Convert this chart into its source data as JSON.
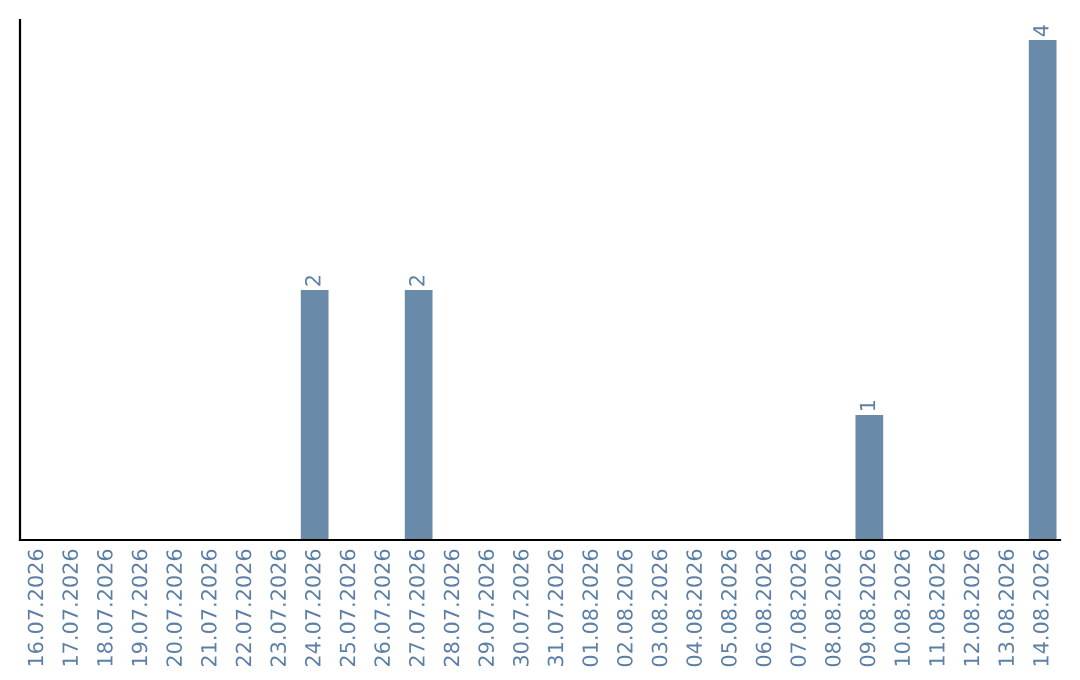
{
  "chart_data": {
    "type": "bar",
    "categories": [
      "16.07.2026",
      "17.07.2026",
      "18.07.2026",
      "19.07.2026",
      "20.07.2026",
      "21.07.2026",
      "22.07.2026",
      "23.07.2026",
      "24.07.2026",
      "25.07.2026",
      "26.07.2026",
      "27.07.2026",
      "28.07.2026",
      "29.07.2026",
      "30.07.2026",
      "31.07.2026",
      "01.08.2026",
      "02.08.2026",
      "03.08.2026",
      "04.08.2026",
      "05.08.2026",
      "06.08.2026",
      "07.08.2026",
      "08.08.2026",
      "09.08.2026",
      "10.08.2026",
      "11.08.2026",
      "12.08.2026",
      "13.08.2026",
      "14.08.2026"
    ],
    "values": [
      0,
      0,
      0,
      0,
      0,
      0,
      0,
      0,
      2,
      0,
      0,
      2,
      0,
      0,
      0,
      0,
      0,
      0,
      0,
      0,
      0,
      0,
      0,
      0,
      1,
      0,
      0,
      0,
      0,
      4
    ],
    "value_labels": [
      null,
      null,
      null,
      null,
      null,
      null,
      null,
      null,
      "2",
      null,
      null,
      "2",
      null,
      null,
      null,
      null,
      null,
      null,
      null,
      null,
      null,
      null,
      null,
      null,
      "1",
      null,
      null,
      null,
      null,
      "4"
    ],
    "color": "#6a8aaa",
    "grid": false,
    "legend": false,
    "tick_labels": "x"
  }
}
